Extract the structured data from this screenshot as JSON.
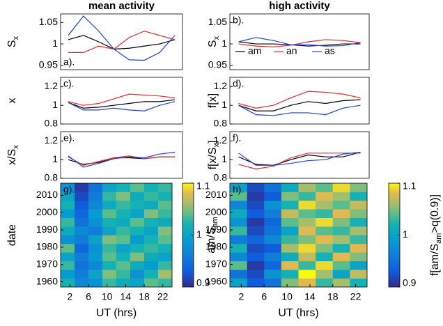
{
  "chart_data": [
    {
      "type": "line",
      "title": "mean activity",
      "panel_label": "a).",
      "ylabel": [
        "S",
        "x"
      ],
      "xlim": [
        0,
        24
      ],
      "ylim": [
        0.94,
        1.07
      ],
      "yticks": [
        0.95,
        1,
        1.05
      ],
      "x": [
        1.5,
        4.5,
        7.5,
        10.5,
        13.5,
        16.5,
        19.5,
        22.5
      ],
      "series": [
        {
          "color": "#000000",
          "values": [
            1.01,
            1.02,
            1.005,
            0.988,
            0.99,
            0.995,
            1.0,
            1.01
          ]
        },
        {
          "color": "#e8262a",
          "values": [
            0.98,
            0.98,
            0.995,
            0.988,
            1.015,
            1.03,
            1.02,
            1.01
          ]
        },
        {
          "color": "#1f3fe0",
          "values": [
            1.02,
            1.065,
            1.03,
            0.988,
            0.963,
            0.962,
            0.98,
            1.02
          ]
        }
      ]
    },
    {
      "type": "line",
      "title": "high activity",
      "panel_label": "b).",
      "ylabel": [
        "S",
        "x"
      ],
      "xlim": [
        0,
        24
      ],
      "ylim": [
        0.94,
        1.07
      ],
      "yticks": [
        0.95,
        1,
        1.05
      ],
      "legend": true,
      "x": [
        1.5,
        4.5,
        7.5,
        10.5,
        13.5,
        16.5,
        19.5,
        22.5
      ],
      "series": [
        {
          "name": "am",
          "color": "#000000",
          "values": [
            1.005,
            1.0,
            1.0,
            0.998,
            0.995,
            0.997,
            1.0,
            1.0
          ]
        },
        {
          "name": "an",
          "color": "#e8262a",
          "values": [
            1.0,
            0.995,
            0.993,
            0.997,
            1.005,
            1.01,
            1.008,
            1.003
          ]
        },
        {
          "name": "as",
          "color": "#1f3fe0",
          "values": [
            1.005,
            1.015,
            1.008,
            0.998,
            0.998,
            0.995,
            0.996,
            1.003
          ]
        }
      ]
    },
    {
      "type": "line",
      "panel_label": "c).",
      "ylabel": [
        "x"
      ],
      "xlim": [
        0,
        24
      ],
      "ylim": [
        0.8,
        1.3
      ],
      "yticks": [
        0.8,
        1,
        1.2
      ],
      "x": [
        1.5,
        4.5,
        7.5,
        10.5,
        13.5,
        16.5,
        19.5,
        22.5
      ],
      "series": [
        {
          "color": "#000000",
          "values": [
            1.03,
            0.97,
            0.98,
            1.0,
            1.02,
            1.04,
            1.04,
            1.06
          ]
        },
        {
          "color": "#e8262a",
          "values": [
            1.04,
            1.0,
            1.02,
            1.07,
            1.12,
            1.11,
            1.1,
            1.08
          ]
        },
        {
          "color": "#1f3fe0",
          "values": [
            1.03,
            0.95,
            0.95,
            0.97,
            0.95,
            0.94,
            1.0,
            1.04
          ]
        }
      ]
    },
    {
      "type": "line",
      "panel_label": "d).",
      "ylabel": [
        "f[x]"
      ],
      "xlim": [
        0,
        24
      ],
      "ylim": [
        0.8,
        1.3
      ],
      "yticks": [
        0.8,
        1,
        1.2
      ],
      "x": [
        1.5,
        4.5,
        7.5,
        10.5,
        13.5,
        16.5,
        19.5,
        22.5
      ],
      "series": [
        {
          "color": "#000000",
          "values": [
            1.0,
            0.94,
            0.94,
            1.0,
            1.04,
            1.02,
            1.05,
            1.06
          ]
        },
        {
          "color": "#e8262a",
          "values": [
            1.02,
            0.97,
            1.0,
            1.08,
            1.15,
            1.14,
            1.12,
            1.08
          ]
        },
        {
          "color": "#1f3fe0",
          "values": [
            1.0,
            0.9,
            0.89,
            0.92,
            0.92,
            0.9,
            0.97,
            1.0
          ]
        }
      ]
    },
    {
      "type": "line",
      "panel_label": "e).",
      "ylabel": [
        "x/S",
        "x"
      ],
      "xlim": [
        0,
        24
      ],
      "ylim": [
        0.8,
        1.3
      ],
      "yticks": [
        0.8,
        1,
        1.2
      ],
      "x": [
        1.5,
        4.5,
        7.5,
        10.5,
        13.5,
        16.5,
        19.5,
        22.5
      ],
      "series": [
        {
          "color": "#000000",
          "values": [
            1.0,
            0.95,
            0.97,
            1.02,
            1.02,
            1.01,
            1.03,
            1.03
          ]
        },
        {
          "color": "#e8262a",
          "values": [
            1.03,
            0.94,
            0.98,
            1.02,
            1.04,
            1.01,
            1.03,
            1.03
          ]
        },
        {
          "color": "#1f3fe0",
          "values": [
            1.04,
            0.92,
            0.96,
            1.01,
            1.03,
            1.02,
            1.06,
            1.08
          ]
        }
      ]
    },
    {
      "type": "line",
      "panel_label": "f).",
      "ylabel": [
        "f[x/S",
        "x",
        "]"
      ],
      "xlim": [
        0,
        24
      ],
      "ylim": [
        0.8,
        1.3
      ],
      "yticks": [
        0.8,
        1,
        1.2
      ],
      "x": [
        1.5,
        4.5,
        7.5,
        10.5,
        13.5,
        16.5,
        19.5,
        22.5
      ],
      "series": [
        {
          "color": "#000000",
          "values": [
            1.03,
            0.95,
            0.94,
            1.0,
            1.05,
            1.03,
            1.03,
            1.08
          ]
        },
        {
          "color": "#e8262a",
          "values": [
            0.95,
            0.9,
            0.93,
            1.02,
            1.07,
            1.07,
            1.07,
            1.07
          ]
        },
        {
          "color": "#1f3fe0",
          "values": [
            1.07,
            0.94,
            0.94,
            0.96,
            0.99,
            1.0,
            1.06,
            1.08
          ]
        }
      ]
    },
    {
      "type": "heatmap",
      "panel_label": "g).",
      "ylabel": [
        "date"
      ],
      "xlabel": "UT (hrs)",
      "colorbar_label": [
        "am/S",
        "am"
      ],
      "colormap": "parula",
      "xlim": [
        0,
        24
      ],
      "xticks": [
        2,
        6,
        10,
        14,
        18,
        22
      ],
      "ylim": [
        1957,
        2017
      ],
      "yticks": [
        1960,
        1970,
        1980,
        1990,
        2000,
        2010
      ],
      "clim": [
        0.9,
        1.1
      ],
      "cticks": [
        0.9,
        1,
        1.1
      ],
      "xbins": [
        0,
        3,
        6,
        9,
        12,
        15,
        18,
        21,
        24
      ],
      "ybins": [
        1957,
        1962,
        1967,
        1972,
        1977,
        1982,
        1987,
        1992,
        1997,
        2002,
        2007,
        2012,
        2017
      ],
      "values": [
        [
          1.02,
          0.97,
          0.98,
          1.03,
          1.01,
          1.0,
          1.04,
          1.03
        ],
        [
          0.99,
          0.96,
          1.0,
          1.05,
          1.03,
          0.98,
          1.02,
          1.06
        ],
        [
          1.03,
          0.95,
          0.97,
          1.02,
          1.04,
          1.01,
          0.99,
          1.03
        ],
        [
          1.0,
          0.96,
          0.99,
          1.04,
          1.02,
          1.05,
          1.01,
          1.0
        ],
        [
          1.04,
          0.94,
          0.98,
          1.03,
          1.0,
          1.02,
          1.03,
          1.02
        ],
        [
          0.98,
          0.96,
          1.0,
          1.05,
          1.04,
          0.99,
          1.02,
          1.04
        ],
        [
          1.01,
          0.97,
          0.96,
          1.0,
          1.03,
          1.02,
          1.0,
          1.05
        ],
        [
          1.03,
          0.95,
          0.98,
          1.02,
          1.01,
          1.04,
          1.02,
          1.01
        ],
        [
          0.99,
          0.94,
          0.99,
          1.04,
          1.02,
          1.0,
          1.05,
          1.03
        ],
        [
          1.02,
          0.93,
          0.97,
          1.01,
          1.03,
          1.02,
          1.01,
          1.04
        ],
        [
          1.0,
          0.92,
          0.96,
          1.03,
          1.05,
          1.01,
          1.03,
          1.02
        ],
        [
          0.98,
          0.91,
          0.95,
          1.0,
          1.02,
          1.04,
          1.02,
          1.03
        ]
      ]
    },
    {
      "type": "heatmap",
      "panel_label": "h).",
      "xlabel": "UT (hrs)",
      "colorbar_label": [
        "f[am/S",
        "am",
        ">q(0.9)]"
      ],
      "colormap": "parula",
      "xlim": [
        0,
        24
      ],
      "xticks": [
        2,
        6,
        10,
        14,
        18,
        22
      ],
      "ylim": [
        1957,
        2017
      ],
      "yticks": [
        1960,
        1970,
        1980,
        1990,
        2000,
        2010
      ],
      "clim": [
        0.9,
        1.1
      ],
      "cticks": [
        0.9,
        1,
        1.1
      ],
      "xbins": [
        0,
        3,
        6,
        9,
        12,
        15,
        18,
        21,
        24
      ],
      "ybins": [
        1957,
        1962,
        1967,
        1972,
        1977,
        1982,
        1987,
        1992,
        1997,
        2002,
        2007,
        2012,
        2017
      ],
      "values": [
        [
          1.0,
          0.93,
          0.95,
          1.05,
          1.08,
          1.03,
          1.06,
          1.02
        ],
        [
          0.95,
          0.92,
          0.98,
          1.02,
          1.1,
          1.06,
          1.0,
          1.07
        ],
        [
          1.04,
          0.91,
          0.94,
          1.08,
          1.03,
          1.09,
          1.04,
          1.0
        ],
        [
          0.97,
          0.93,
          0.96,
          1.01,
          1.07,
          1.02,
          1.08,
          1.05
        ],
        [
          1.02,
          0.92,
          0.93,
          1.06,
          1.09,
          1.05,
          1.02,
          1.08
        ],
        [
          0.96,
          0.94,
          0.97,
          1.03,
          1.05,
          1.08,
          1.06,
          1.03
        ],
        [
          1.03,
          0.92,
          0.95,
          1.0,
          1.08,
          1.04,
          1.03,
          1.06
        ],
        [
          0.98,
          0.91,
          0.94,
          1.04,
          1.06,
          1.09,
          1.05,
          1.02
        ],
        [
          1.01,
          0.93,
          0.96,
          1.07,
          1.04,
          1.03,
          1.08,
          1.05
        ],
        [
          0.97,
          0.92,
          0.98,
          1.02,
          1.09,
          1.06,
          1.04,
          1.07
        ],
        [
          1.04,
          0.91,
          0.93,
          1.05,
          1.03,
          1.08,
          1.06,
          1.02
        ],
        [
          1.0,
          0.92,
          0.95,
          1.01,
          1.06,
          1.04,
          1.09,
          1.05
        ]
      ]
    }
  ]
}
